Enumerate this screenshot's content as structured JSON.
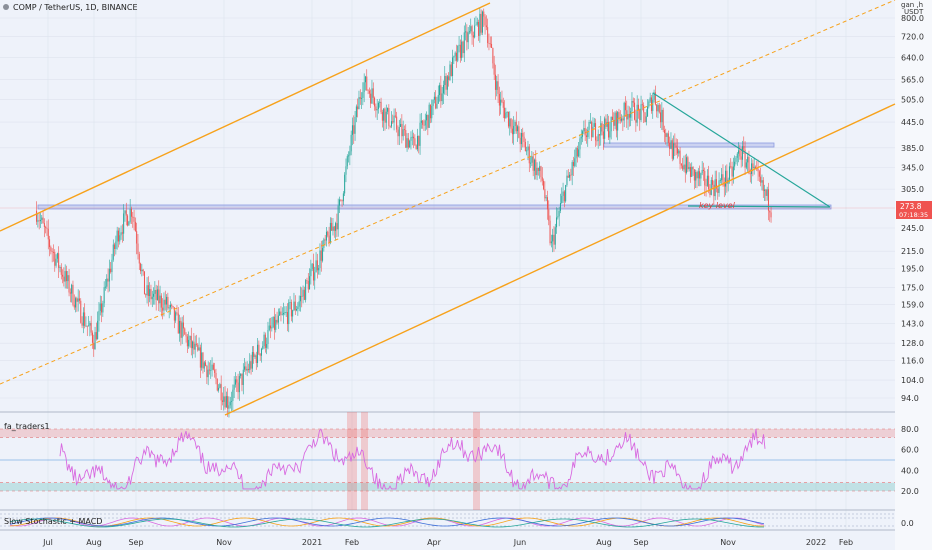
{
  "header": {
    "symbol_title": "COMP / TetherUS, 1D, BINANCE",
    "currency_top": "gan ,h",
    "currency": "USDT"
  },
  "price_badge": {
    "price": "273.8",
    "countdown": "07:18:35"
  },
  "annotation": "key level",
  "colors": {
    "up": "#26a69a",
    "down": "#ef5350",
    "channel": "#f7a21b",
    "wedge": "#26a69a",
    "level_line": "#8c9be0",
    "rsi": "#d86ae0",
    "badge": "#ef5350",
    "annotation": "#e53935"
  },
  "indicators": {
    "rsi": {
      "label": "fa_traders1",
      "ticks": [
        "80.0",
        "60.0",
        "40.0",
        "20.0"
      ]
    },
    "stoch_macd": {
      "label": "Slow Stochastic + MACD",
      "ticks": [
        "0.0"
      ]
    }
  },
  "chart_data": {
    "type": "candlestick",
    "y_ticks": [
      "800.0",
      "720.0",
      "640.0",
      "565.0",
      "505.0",
      "445.0",
      "385.0",
      "345.0",
      "305.0",
      "245.0",
      "215.0",
      "195.0",
      "175.0",
      "159.0",
      "143.0",
      "128.0",
      "116.0",
      "104.0",
      "94.0"
    ],
    "x_ticks": [
      "Jul",
      "Aug",
      "Sep",
      "Nov",
      "2021",
      "Feb",
      "Apr",
      "Jun",
      "Aug",
      "Sep",
      "Nov",
      "2022",
      "Feb"
    ],
    "ylim": [
      88,
      880
    ],
    "y_scale": "log",
    "key_points": [
      {
        "date": "2020-06-25",
        "close": 270
      },
      {
        "date": "2020-07-05",
        "close": 220
      },
      {
        "date": "2020-07-20",
        "close": 170
      },
      {
        "date": "2020-08-05",
        "close": 130
      },
      {
        "date": "2020-08-22",
        "close": 240
      },
      {
        "date": "2020-09-01",
        "close": 275
      },
      {
        "date": "2020-09-10",
        "close": 170
      },
      {
        "date": "2020-09-25",
        "close": 160
      },
      {
        "date": "2020-10-10",
        "close": 130
      },
      {
        "date": "2020-10-30",
        "close": 105
      },
      {
        "date": "2020-11-08",
        "close": 92
      },
      {
        "date": "2020-11-25",
        "close": 115
      },
      {
        "date": "2020-12-10",
        "close": 140
      },
      {
        "date": "2020-12-28",
        "close": 160
      },
      {
        "date": "2021-01-10",
        "close": 200
      },
      {
        "date": "2021-01-25",
        "close": 260
      },
      {
        "date": "2021-02-05",
        "close": 420
      },
      {
        "date": "2021-02-12",
        "close": 560
      },
      {
        "date": "2021-03-01",
        "close": 460
      },
      {
        "date": "2021-03-20",
        "close": 390
      },
      {
        "date": "2021-04-05",
        "close": 500
      },
      {
        "date": "2021-04-25",
        "close": 700
      },
      {
        "date": "2021-05-10",
        "close": 800
      },
      {
        "date": "2021-05-20",
        "close": 500
      },
      {
        "date": "2021-06-05",
        "close": 400
      },
      {
        "date": "2021-06-20",
        "close": 320
      },
      {
        "date": "2021-06-26",
        "close": 220
      },
      {
        "date": "2021-07-05",
        "close": 300
      },
      {
        "date": "2021-07-20",
        "close": 420
      },
      {
        "date": "2021-08-05",
        "close": 430
      },
      {
        "date": "2021-08-20",
        "close": 480
      },
      {
        "date": "2021-09-01",
        "close": 460
      },
      {
        "date": "2021-09-07",
        "close": 520
      },
      {
        "date": "2021-09-20",
        "close": 380
      },
      {
        "date": "2021-10-05",
        "close": 330
      },
      {
        "date": "2021-10-20",
        "close": 310
      },
      {
        "date": "2021-11-01",
        "close": 330
      },
      {
        "date": "2021-11-07",
        "close": 380
      },
      {
        "date": "2021-11-20",
        "close": 320
      },
      {
        "date": "2021-11-30",
        "close": 273.8
      }
    ]
  }
}
